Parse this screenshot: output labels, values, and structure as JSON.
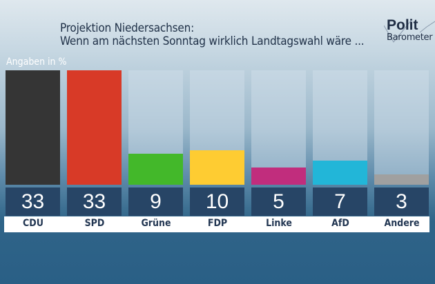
{
  "header": {
    "title_line1": "Projektion Niedersachsen:",
    "title_line2": "Wenn am nächsten Sonntag wirklich Landtagswahl wäre ...",
    "logo_line1": "Polit",
    "logo_line2": "Barometer"
  },
  "chart_data": {
    "type": "bar",
    "title": "Projektion Niedersachsen: Wenn am nächsten Sonntag wirklich Landtagswahl wäre ...",
    "ylabel": "Angaben in %",
    "xlabel": "",
    "categories": [
      "CDU",
      "SPD",
      "Grüne",
      "FDP",
      "Linke",
      "AfD",
      "Andere"
    ],
    "values": [
      33,
      33,
      9,
      10,
      5,
      7,
      3
    ],
    "value_labels": [
      "33",
      "33",
      "9",
      "10",
      "5",
      "7",
      "3"
    ],
    "colors": [
      "#353535",
      "#d83a27",
      "#43b82a",
      "#fecc32",
      "#c12d7d",
      "#22b6d8",
      "#a0a0a0"
    ],
    "ylim": [
      0,
      33
    ],
    "grid": false,
    "legend": "none"
  }
}
